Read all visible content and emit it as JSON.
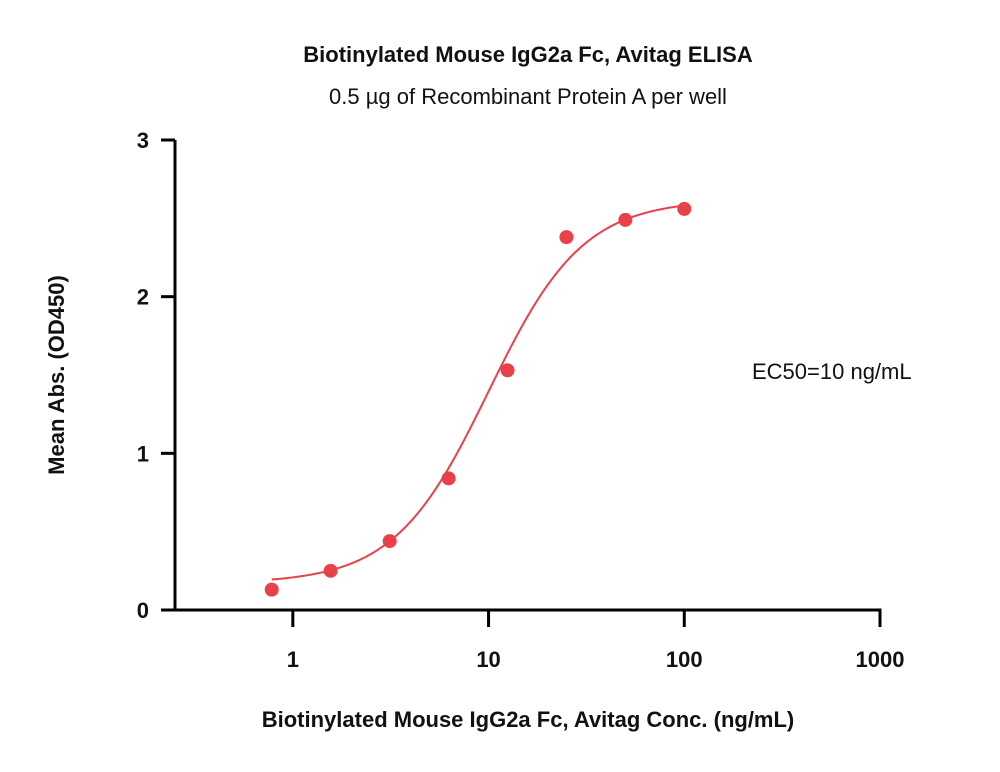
{
  "chart_data": {
    "type": "scatter",
    "title": "Biotinylated Mouse IgG2a Fc, Avitag ELISA",
    "subtitle": "0.5 µg of Recombinant Protein A per well",
    "xlabel": "Biotinylated Mouse IgG2a Fc, Avitag Conc. (ng/mL)",
    "ylabel": "Mean Abs. (OD450)",
    "x_scale": "log",
    "xlim": [
      0.25,
      1000
    ],
    "ylim": [
      0,
      3
    ],
    "x_ticks": [
      1,
      10,
      100,
      1000
    ],
    "x_tick_labels": [
      "1",
      "10",
      "100",
      "1000"
    ],
    "y_ticks": [
      0,
      1,
      2,
      3
    ],
    "y_tick_labels": [
      "0",
      "1",
      "2",
      "3"
    ],
    "grid": false,
    "annotation": "EC50=10 ng/mL",
    "point_color": "#e8414a",
    "curve_color": "#e8414a",
    "series": [
      {
        "x": [
          0.78,
          1.56,
          3.125,
          6.25,
          12.5,
          25,
          50,
          100
        ],
        "y": [
          0.13,
          0.25,
          0.44,
          0.84,
          1.53,
          2.38,
          2.49,
          2.56
        ]
      }
    ],
    "fit": {
      "model": "4PL",
      "bottom": 0.17,
      "top": 2.62,
      "ec50": 10,
      "hill": 1.8,
      "x_range": [
        0.78,
        100
      ]
    }
  }
}
